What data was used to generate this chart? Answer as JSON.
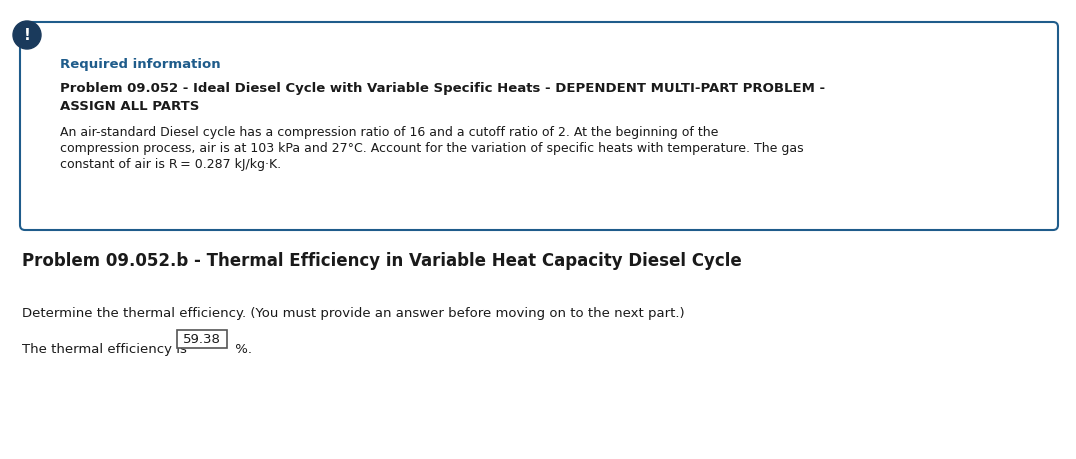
{
  "bg_color": "#ffffff",
  "box_border_color": "#1f5c8b",
  "box_bg_color": "#ffffff",
  "required_info_color": "#1f5c8b",
  "required_info_text": "Required information",
  "problem_title_line1": "Problem 09.052 - Ideal Diesel Cycle with Variable Specific Heats - DEPENDENT MULTI-PART PROBLEM -",
  "problem_title_line2": "ASSIGN ALL PARTS",
  "problem_body_line1": "An air-standard Diesel cycle has a compression ratio of 16 and a cutoff ratio of 2. At the beginning of the",
  "problem_body_line2": "compression process, air is at 103 kPa and 27°C. Account for the variation of specific heats with temperature. The gas",
  "problem_body_line3": "constant of air is R = 0.287 kJ/kg·K.",
  "icon_color": "#1a3a5c",
  "icon_text": "!",
  "section_title": "Problem 09.052.b - Thermal Efficiency in Variable Heat Capacity Diesel Cycle",
  "instruction_text": "Determine the thermal efficiency. (You must provide an answer before moving on to the next part.)",
  "result_prefix": "The thermal efficiency is",
  "result_value": "59.38",
  "result_suffix": "%.",
  "body_text_color": "#1a1a1a",
  "instruction_text_color": "#1a1a1a",
  "result_text_color": "#1a1a1a",
  "box_value_color": "#1a1a1a",
  "font_size_required": 9.5,
  "font_size_title_bold": 9.5,
  "font_size_body": 9.0,
  "font_size_section": 12,
  "font_size_instruction": 9.5,
  "font_size_result": 9.5
}
